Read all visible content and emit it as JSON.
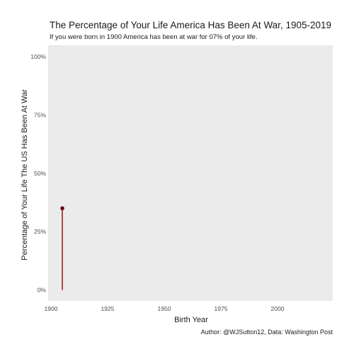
{
  "chart_data": {
    "type": "line",
    "title": "The Percentage of Your Life America Has Been At War, 1905-2019",
    "subtitle": "If you were born in 1900 America has been at war for 07% of your life.",
    "xlabel": "Birth Year",
    "ylabel": "Percentage of Your Life The US Has Been At War",
    "caption": "Author: @WJSutton12, Data: Washington Post",
    "xlim": [
      1900,
      2025
    ],
    "ylim": [
      0,
      1
    ],
    "x_ticks": [
      1900,
      1925,
      1950,
      1975,
      2000
    ],
    "y_ticks": [
      0,
      0.25,
      0.5,
      0.75,
      1.0
    ],
    "y_tick_labels": [
      "0%",
      "25%",
      "50%",
      "75%",
      "100%"
    ],
    "grid": false,
    "panel_background": "#ebebeb",
    "series": [
      {
        "color": "#6b0000",
        "x": [
          1905
        ],
        "y": [
          0.35
        ],
        "style": "lollipop"
      }
    ]
  }
}
